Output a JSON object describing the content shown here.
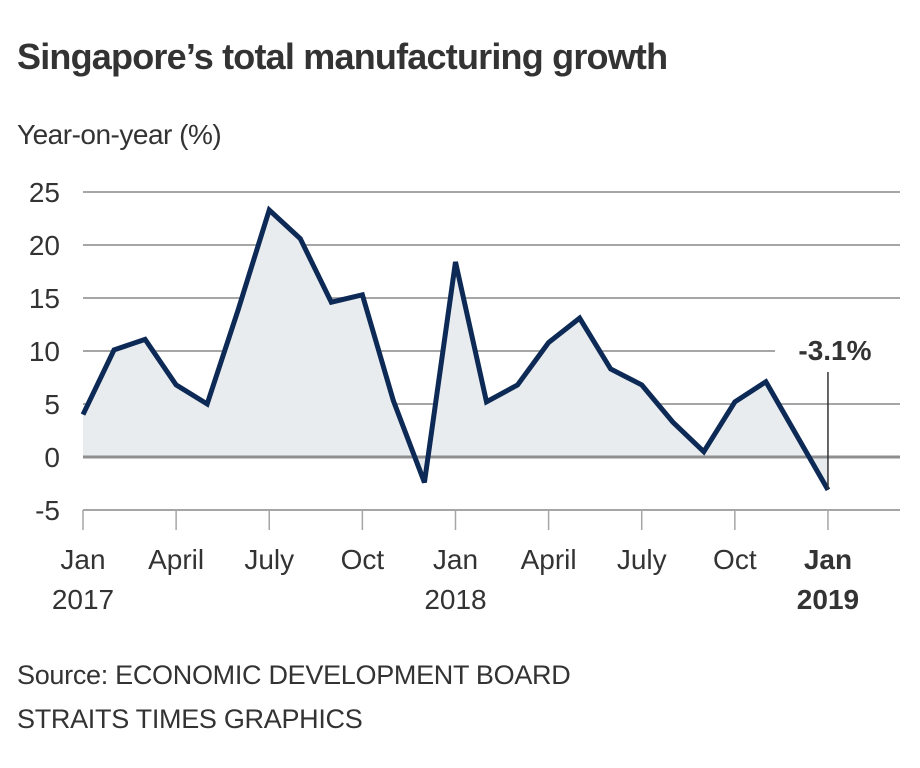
{
  "header": {
    "title": "Singapore’s total manufacturing growth",
    "ylabel": "Year-on-year (%)"
  },
  "footer": {
    "source": "Source: ECONOMIC DEVELOPMENT BOARD",
    "credit": "STRAITS TIMES GRAPHICS"
  },
  "colors": {
    "line": "#0c2a55",
    "fill": "#e9ecee",
    "grid": "#a6a6a6",
    "zero": "#8f8f8f",
    "text": "#333333"
  },
  "chart_data": {
    "type": "area",
    "title": "Singapore’s total manufacturing growth",
    "ylabel": "Year-on-year (%)",
    "xlabel": "",
    "ylim": [
      -5,
      25
    ],
    "yticks": [
      25,
      20,
      15,
      10,
      5,
      0,
      -5
    ],
    "grid": true,
    "x": [
      "Jan 2017",
      "Feb 2017",
      "Mar 2017",
      "Apr 2017",
      "May 2017",
      "Jun 2017",
      "Jul 2017",
      "Aug 2017",
      "Sep 2017",
      "Oct 2017",
      "Nov 2017",
      "Dec 2017",
      "Jan 2018",
      "Feb 2018",
      "Mar 2018",
      "Apr 2018",
      "May 2018",
      "Jun 2018",
      "Jul 2018",
      "Aug 2018",
      "Sep 2018",
      "Oct 2018",
      "Nov 2018",
      "Dec 2018",
      "Jan 2019"
    ],
    "series": [
      {
        "name": "Total manufacturing growth",
        "values": [
          4.0,
          10.1,
          11.1,
          6.8,
          5.0,
          13.9,
          23.3,
          20.6,
          14.6,
          15.3,
          5.3,
          -2.4,
          18.4,
          5.2,
          6.8,
          10.8,
          13.1,
          8.3,
          6.8,
          3.3,
          0.5,
          5.2,
          7.1,
          2.0,
          -3.1
        ]
      }
    ],
    "xticks": [
      {
        "index": 0,
        "line1": "Jan",
        "line2": "2017",
        "bold": false
      },
      {
        "index": 3,
        "line1": "April",
        "line2": "",
        "bold": false
      },
      {
        "index": 6,
        "line1": "July",
        "line2": "",
        "bold": false
      },
      {
        "index": 9,
        "line1": "Oct",
        "line2": "",
        "bold": false
      },
      {
        "index": 12,
        "line1": "Jan",
        "line2": "2018",
        "bold": false
      },
      {
        "index": 15,
        "line1": "April",
        "line2": "",
        "bold": false
      },
      {
        "index": 18,
        "line1": "July",
        "line2": "",
        "bold": false
      },
      {
        "index": 21,
        "line1": "Oct",
        "line2": "",
        "bold": false
      },
      {
        "index": 24,
        "line1": "Jan",
        "line2": "2019",
        "bold": true
      }
    ],
    "annotations": [
      {
        "index": 24,
        "text": "-3.1%"
      }
    ]
  }
}
